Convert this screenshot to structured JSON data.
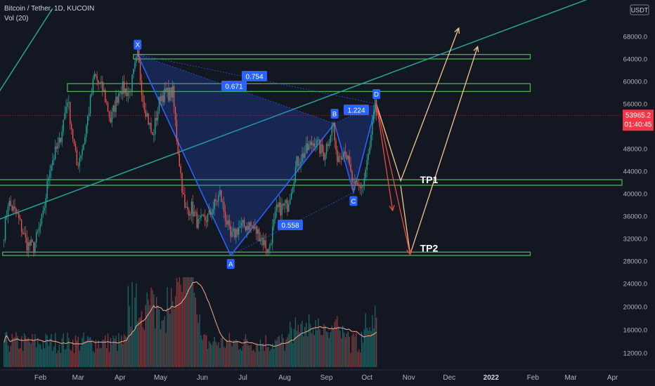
{
  "legend": {
    "title": "Bitcoin / Tether, 1D, KUCOIN",
    "volume": "Vol (20)"
  },
  "chart_data": {
    "type": "candlestick",
    "symbol": "Bitcoin / Tether",
    "timeframe": "1D",
    "exchange": "KUCOIN",
    "currency": "USDT",
    "price_axis": {
      "ticks": [
        "68000.0",
        "64000.0",
        "60000.0",
        "56000.0",
        "52000.0",
        "48000.0",
        "44000.0",
        "40000.0",
        "36000.0",
        "32000.0",
        "28000.0",
        "24000.0",
        "20000.0",
        "16000.0",
        "12000.0"
      ]
    },
    "time_axis": {
      "ticks": [
        "Feb",
        "Mar",
        "Apr",
        "May",
        "Jun",
        "Jul",
        "Aug",
        "Sep",
        "Oct",
        "Nov",
        "Dec",
        "2022",
        "Feb",
        "Mar",
        "Apr"
      ]
    },
    "last_price": {
      "value": "53965.2",
      "countdown": "01:40:45"
    },
    "price_path": [
      [
        "2021-01-05",
        33000
      ],
      [
        "2021-01-08",
        38500
      ],
      [
        "2021-01-15",
        36000
      ],
      [
        "2021-01-22",
        31000
      ],
      [
        "2021-01-27",
        30500
      ],
      [
        "2021-02-03",
        36000
      ],
      [
        "2021-02-08",
        45000
      ],
      [
        "2021-02-15",
        49000
      ],
      [
        "2021-02-21",
        57000
      ],
      [
        "2021-02-28",
        45000
      ],
      [
        "2021-03-05",
        49000
      ],
      [
        "2021-03-13",
        61000
      ],
      [
        "2021-03-20",
        58000
      ],
      [
        "2021-03-25",
        53000
      ],
      [
        "2021-04-01",
        59000
      ],
      [
        "2021-04-08",
        58000
      ],
      [
        "2021-04-14",
        64500
      ],
      [
        "2021-04-18",
        57000
      ],
      [
        "2021-04-25",
        50000
      ],
      [
        "2021-05-01",
        57500
      ],
      [
        "2021-05-10",
        58000
      ],
      [
        "2021-05-13",
        50000
      ],
      [
        "2021-05-19",
        37000
      ],
      [
        "2021-05-24",
        37500
      ],
      [
        "2021-05-29",
        34500
      ],
      [
        "2021-06-06",
        36000
      ],
      [
        "2021-06-14",
        40000
      ],
      [
        "2021-06-22",
        32000
      ],
      [
        "2021-06-28",
        34000
      ],
      [
        "2021-07-06",
        34500
      ],
      [
        "2021-07-14",
        32500
      ],
      [
        "2021-07-20",
        29800
      ],
      [
        "2021-07-26",
        37000
      ],
      [
        "2021-08-03",
        38000
      ],
      [
        "2021-08-10",
        45500
      ],
      [
        "2021-08-23",
        49500
      ],
      [
        "2021-08-30",
        47000
      ],
      [
        "2021-09-06",
        52500
      ],
      [
        "2021-09-08",
        46500
      ],
      [
        "2021-09-15",
        48000
      ],
      [
        "2021-09-21",
        41000
      ],
      [
        "2021-09-28",
        41500
      ],
      [
        "2021-10-03",
        48000
      ],
      [
        "2021-10-07",
        55500
      ],
      [
        "2021-10-08",
        53965
      ]
    ],
    "harmonic_pattern": {
      "points": [
        {
          "label": "X",
          "date": "2021-04-14",
          "price": 64800
        },
        {
          "label": "A",
          "date": "2021-06-22",
          "price": 29000
        },
        {
          "label": "B",
          "date": "2021-09-07",
          "price": 52500
        },
        {
          "label": "C",
          "date": "2021-09-21",
          "price": 40200
        },
        {
          "label": "D",
          "date": "2021-10-08",
          "price": 56000
        }
      ],
      "ratios": [
        {
          "label": "0.754",
          "between": "X-B"
        },
        {
          "label": "0.671",
          "between": "X-B"
        },
        {
          "label": "1.224",
          "between": "B-D"
        },
        {
          "label": "0.558",
          "between": "A-C"
        }
      ]
    },
    "zones": [
      {
        "from": 64000,
        "to": 64800,
        "start": "2021-04-11",
        "end": "2022-01-30"
      },
      {
        "from": 58200,
        "to": 59600,
        "start": "2021-02-21",
        "end": "2022-01-30"
      },
      {
        "from": 41500,
        "to": 42500,
        "start": "2021-01-01",
        "end": "2022-04-20"
      },
      {
        "from": 29000,
        "to": 29600,
        "start": "2021-01-04",
        "end": "2022-01-30"
      }
    ],
    "targets": [
      {
        "label": "TP1",
        "date": "2021-11-02",
        "price": 41400
      },
      {
        "label": "TP2",
        "date": "2021-11-02",
        "price": 29200
      }
    ],
    "projections": [
      {
        "color": "#f7c58f",
        "points": [
          [
            "2021-10-08",
            56000
          ],
          [
            "2021-10-26",
            42300
          ],
          [
            "2021-12-08",
            69500
          ]
        ]
      },
      {
        "color": "#f7c58f",
        "points": [
          [
            "2021-10-26",
            41400
          ],
          [
            "2021-11-02",
            29200
          ],
          [
            "2021-12-22",
            66200
          ]
        ]
      },
      {
        "color": "#e74c3c",
        "points": [
          [
            "2021-10-08",
            56000
          ],
          [
            "2021-10-20",
            37000
          ]
        ]
      },
      {
        "color": "#e74c3c",
        "points": [
          [
            "2021-10-08",
            56000
          ],
          [
            "2021-11-02",
            29200
          ]
        ]
      }
    ],
    "trendline": {
      "color": "#26a69a",
      "points": [
        [
          "2021-01-01",
          35400
        ],
        [
          "2022-04-20",
          78000
        ]
      ]
    },
    "upper_trendline": {
      "color": "#26a69a",
      "points": [
        [
          "2021-01-01",
          58000
        ],
        [
          "2021-02-10",
          73000
        ]
      ]
    },
    "volume_ma_range": [
      12000,
      20000
    ]
  },
  "colors": {
    "up": "#26a69a",
    "down": "#ef5350",
    "pattern": "#2962ff",
    "zone": "#4caf50",
    "label_bg": "#2962ff"
  }
}
